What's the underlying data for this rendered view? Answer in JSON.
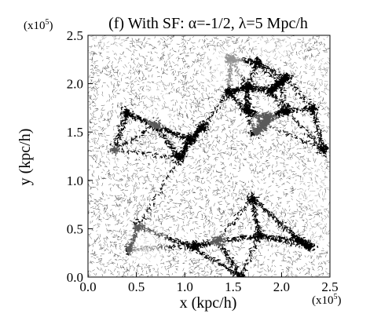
{
  "figure": {
    "title": "(f) With SF: α=-1/2, λ=5 Mpc/h",
    "xlabel": "x (kpc/h)",
    "ylabel": "y (kpc/h)",
    "x_scale_note": "(x10",
    "y_scale_note": "(x10",
    "scale_exponent": "5",
    "scale_close": ")",
    "x_ticks": [
      "0.0",
      "0.5",
      "1.0",
      "1.5",
      "2.0",
      "2.5"
    ],
    "y_ticks": [
      "0.0",
      "0.5",
      "1.0",
      "1.5",
      "2.0",
      "2.5"
    ],
    "x_range": [
      0,
      2.5
    ],
    "y_range": [
      0,
      2.5
    ],
    "image_description_type": "particle-distribution",
    "colors": {
      "background": "#ffffff",
      "particles": "#000000"
    }
  }
}
